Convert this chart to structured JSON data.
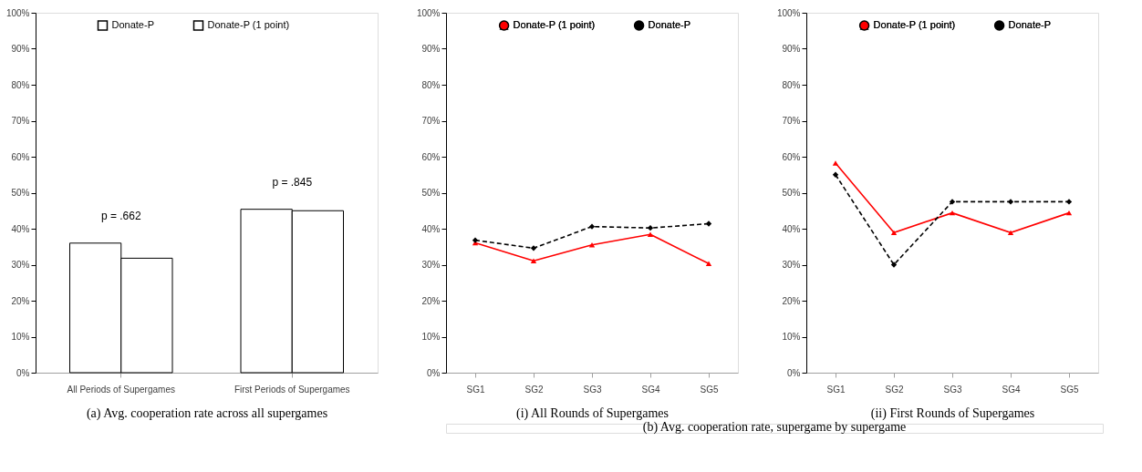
{
  "chart_data": [
    {
      "type": "bar",
      "xlabel": "(a) Avg. cooperation rate across all supergames",
      "categories": [
        "All Periods of Supergames",
        "First Periods of Supergames"
      ],
      "series": [
        {
          "name": "Donate-P",
          "color": "#ffffff",
          "values": [
            36,
            45.4
          ]
        },
        {
          "name": "Donate-P (1 point)",
          "color": "#ffffff",
          "values": [
            31.8,
            45
          ]
        }
      ],
      "ylim": [
        0,
        100
      ],
      "yticks": [
        {
          "value": 0,
          "label": "0%"
        },
        {
          "value": 10,
          "label": "10%"
        },
        {
          "value": 20,
          "label": "20%"
        },
        {
          "value": 30,
          "label": "30%"
        },
        {
          "value": 40,
          "label": "40%"
        },
        {
          "value": 50,
          "label": "50%"
        },
        {
          "value": 60,
          "label": "60%"
        },
        {
          "value": 70,
          "label": "70%"
        },
        {
          "value": 80,
          "label": "80%"
        },
        {
          "value": 90,
          "label": "90%"
        },
        {
          "value": 100,
          "label": "100%"
        }
      ],
      "annotations": [
        "p = .662",
        "p = .845"
      ],
      "legend": "top",
      "grid": false
    },
    {
      "type": "line",
      "xlabel": "(i) All Rounds of Supergames",
      "categories": [
        "SG1",
        "SG2",
        "SG3",
        "SG4",
        "SG5"
      ],
      "series": [
        {
          "name": "Donate-P (1 point)",
          "color": "#ff0000",
          "marker": "triangle",
          "line_style": "solid",
          "values": [
            36.1,
            31.1,
            35.5,
            38.4,
            30.3
          ]
        },
        {
          "name": "Donate-P",
          "color": "#000000",
          "marker": "diamond",
          "line_style": "dashed",
          "values": [
            36.8,
            34.6,
            40.6,
            40.2,
            41.4
          ]
        }
      ],
      "ylim": [
        0,
        100
      ],
      "yticks": [
        {
          "value": 0,
          "label": "0%"
        },
        {
          "value": 10,
          "label": "10%"
        },
        {
          "value": 20,
          "label": "20%"
        },
        {
          "value": 30,
          "label": "30%"
        },
        {
          "value": 40,
          "label": "40%"
        },
        {
          "value": 50,
          "label": "50%"
        },
        {
          "value": 60,
          "label": "60%"
        },
        {
          "value": 70,
          "label": "70%"
        },
        {
          "value": 80,
          "label": "80%"
        },
        {
          "value": 90,
          "label": "90%"
        },
        {
          "value": 100,
          "label": "100%"
        }
      ],
      "annotations": [
        "(b) Avg. cooperation rate, supergame by supergame"
      ],
      "legend": "top",
      "grid": false
    },
    {
      "type": "line",
      "xlabel": "(ii) First Rounds of Supergames",
      "categories": [
        "SG1",
        "SG2",
        "SG3",
        "SG4",
        "SG5"
      ],
      "series": [
        {
          "name": "Donate-P (1 point)",
          "color": "#ff0000",
          "marker": "triangle",
          "line_style": "solid",
          "values": [
            58.2,
            38.9,
            44.4,
            38.9,
            44.4
          ]
        },
        {
          "name": "Donate-P",
          "color": "#000000",
          "marker": "diamond",
          "line_style": "dashed",
          "values": [
            55,
            30,
            47.5,
            47.5,
            47.5
          ]
        }
      ],
      "ylim": [
        0,
        100
      ],
      "yticks": [
        {
          "value": 0,
          "label": "0%"
        },
        {
          "value": 10,
          "label": "10%"
        },
        {
          "value": 20,
          "label": "20%"
        },
        {
          "value": 30,
          "label": "30%"
        },
        {
          "value": 40,
          "label": "40%"
        },
        {
          "value": 50,
          "label": "50%"
        },
        {
          "value": 60,
          "label": "60%"
        },
        {
          "value": 70,
          "label": "70%"
        },
        {
          "value": 80,
          "label": "80%"
        },
        {
          "value": 90,
          "label": "90%"
        },
        {
          "value": 100,
          "label": "100%"
        }
      ],
      "legend": "top",
      "grid": false
    }
  ]
}
